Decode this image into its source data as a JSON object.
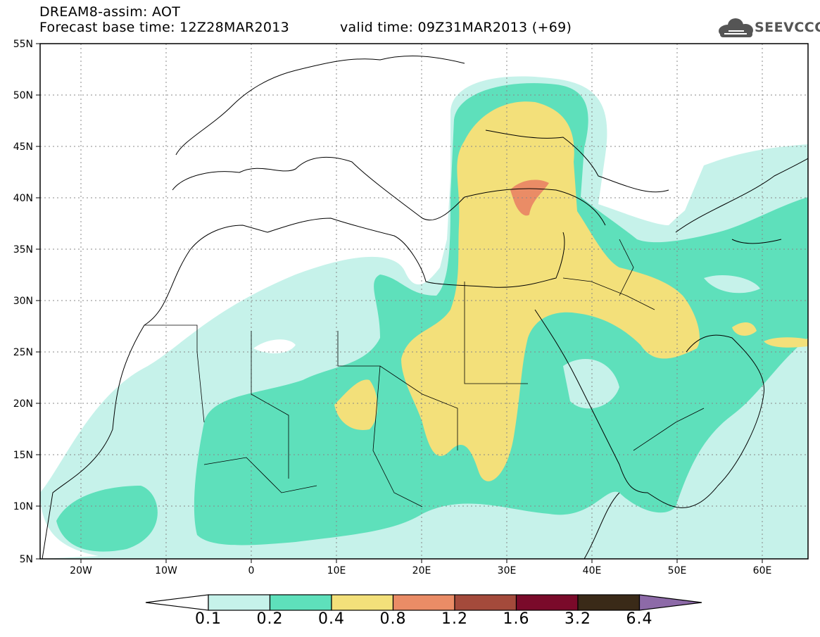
{
  "header": {
    "title_line1": "DREAM8-assim: AOT",
    "title_line2": "Forecast base time: 12Z28MAR2013",
    "valid_time": "valid time: 09Z31MAR2013 (+69)",
    "logo_text": "SEEVCCC",
    "logo_icon": "cloud-icon"
  },
  "map": {
    "lat_labels": [
      "55N",
      "50N",
      "45N",
      "40N",
      "35N",
      "30N",
      "25N",
      "20N",
      "15N",
      "10N",
      "5N"
    ],
    "lon_labels": [
      "20W",
      "10W",
      "0",
      "10E",
      "20E",
      "30E",
      "40E",
      "50E",
      "60E"
    ],
    "lon_range": [
      -25,
      65
    ],
    "lat_range": [
      5,
      55
    ],
    "grid": "dotted"
  },
  "colorbar": {
    "levels": [
      "0.1",
      "0.2",
      "0.4",
      "0.8",
      "1.2",
      "1.6",
      "3.2",
      "6.4"
    ],
    "colors": [
      "#ffffff",
      "#c6f2ea",
      "#5ee0bb",
      "#f3e07a",
      "#ea8c66",
      "#a44a3b",
      "#7a0a2a",
      "#3a2a18",
      "#8d6aa8"
    ]
  }
}
